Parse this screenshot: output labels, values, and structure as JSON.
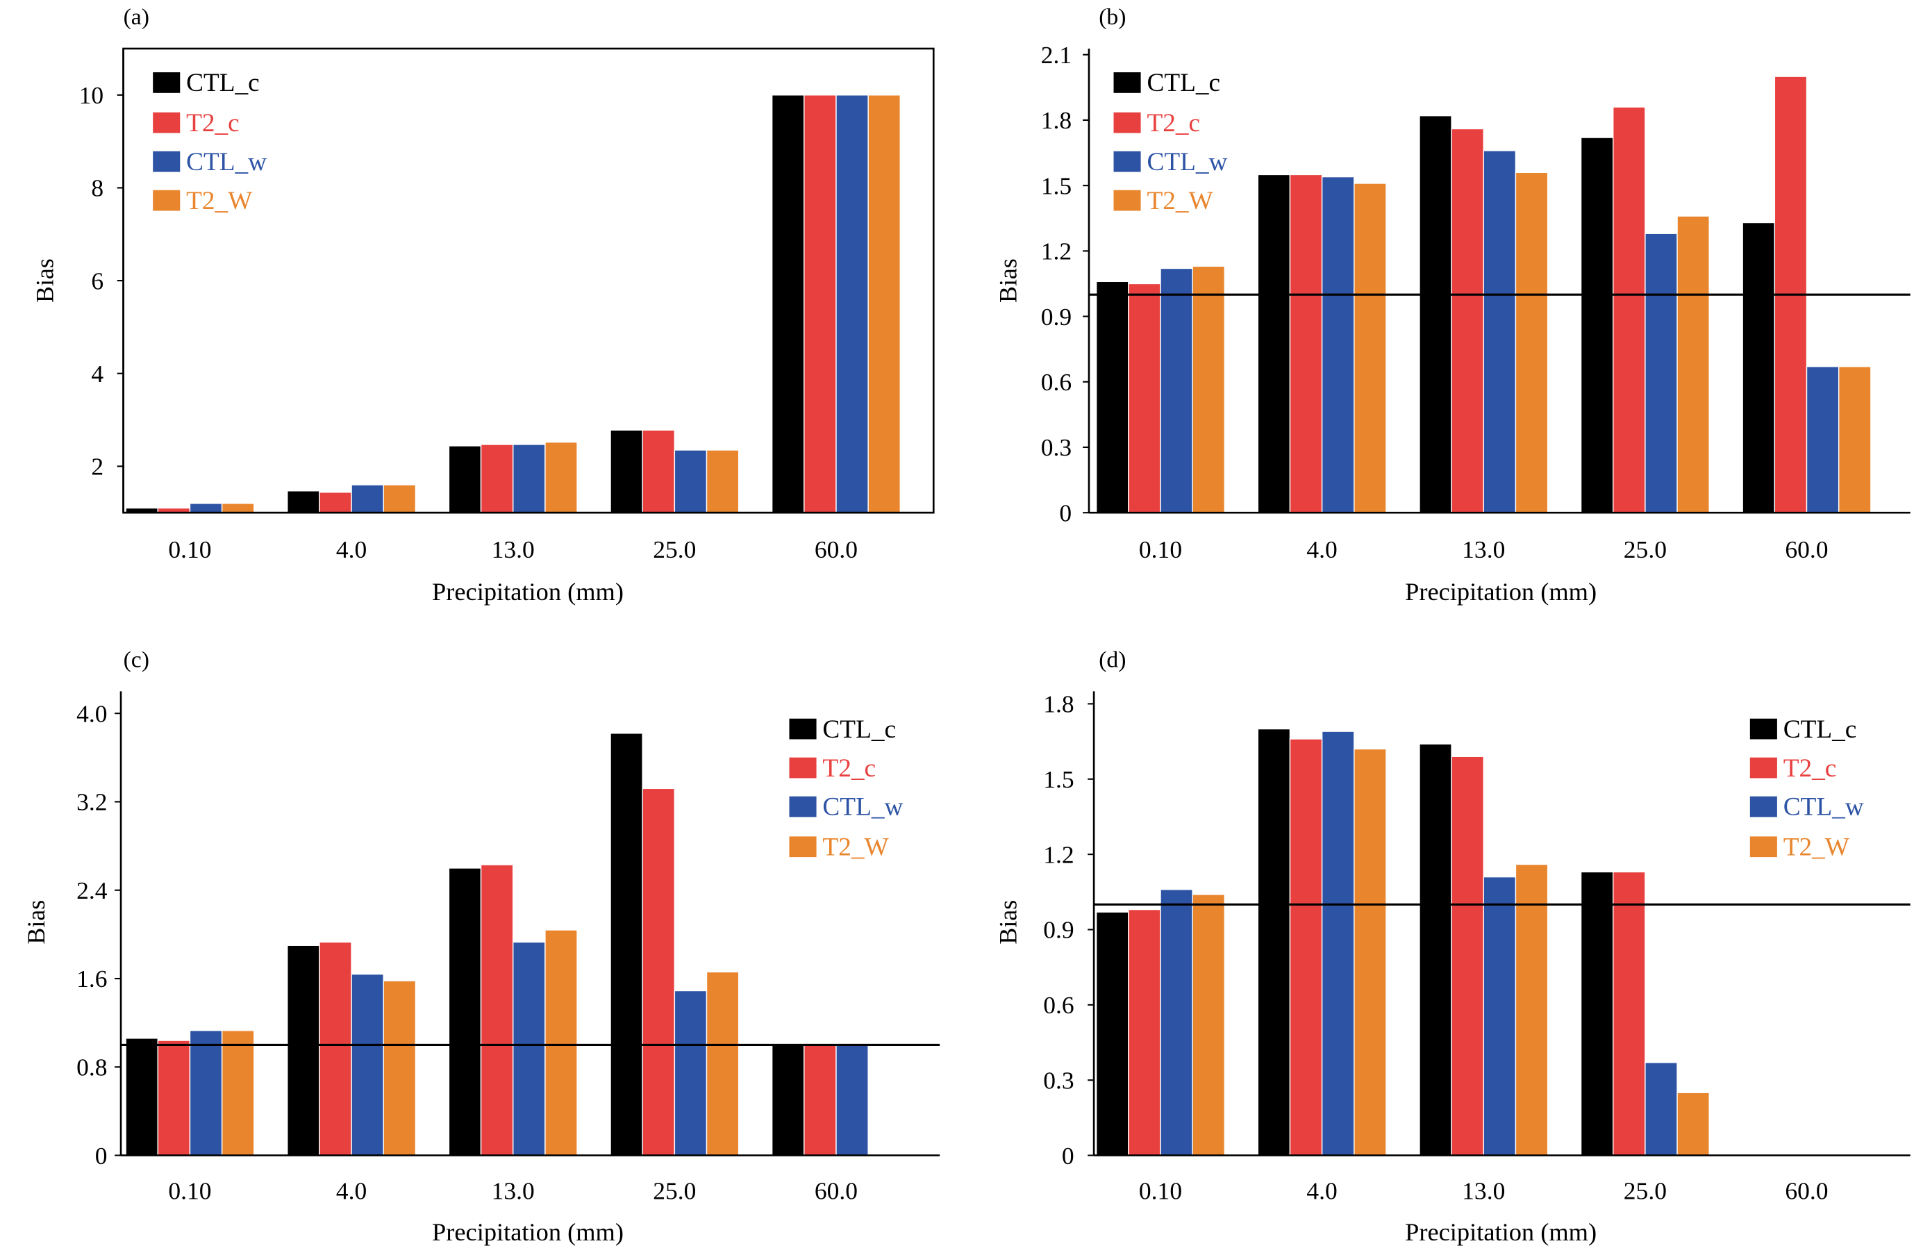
{
  "chart_data": [
    {
      "panel_label": "(a)",
      "type": "bar",
      "categories": [
        "0.10",
        "4.0",
        "13.0",
        "25.0",
        "60.0"
      ],
      "series": [
        {
          "name": "CTL_c",
          "color": "#000000",
          "values": [
            1.1,
            1.47,
            2.44,
            2.78,
            10.0
          ]
        },
        {
          "name": "T2_c",
          "color": "#e8403f",
          "values": [
            1.1,
            1.44,
            2.47,
            2.78,
            10.0
          ]
        },
        {
          "name": "CTL_w",
          "color": "#2d53a5",
          "values": [
            1.2,
            1.6,
            2.47,
            2.35,
            10.0
          ]
        },
        {
          "name": "T2_W",
          "color": "#e9852d",
          "values": [
            1.2,
            1.6,
            2.52,
            2.35,
            10.0
          ]
        }
      ],
      "xlabel": "Precipitation (mm)",
      "ylabel": "Bias",
      "ylim": [
        1,
        11
      ],
      "yticks": [
        "2",
        "4",
        "6",
        "8",
        "10"
      ],
      "legend": "top-left",
      "grid": false
    },
    {
      "panel_label": "(b)",
      "type": "bar",
      "categories": [
        "0.10",
        "4.0",
        "13.0",
        "25.0",
        "60.0"
      ],
      "series": [
        {
          "name": "CTL_c",
          "color": "#000000",
          "values": [
            1.06,
            1.55,
            1.82,
            1.72,
            1.33
          ]
        },
        {
          "name": "T2_c",
          "color": "#e8403f",
          "values": [
            1.05,
            1.55,
            1.76,
            1.86,
            2.0
          ]
        },
        {
          "name": "CTL_w",
          "color": "#2d53a5",
          "values": [
            1.12,
            1.54,
            1.66,
            1.28,
            0.67
          ]
        },
        {
          "name": "T2_W",
          "color": "#e9852d",
          "values": [
            1.13,
            1.51,
            1.56,
            1.36,
            0.67
          ]
        }
      ],
      "xlabel": "Precipitation (mm)",
      "ylabel": "Bias",
      "ylim": [
        0,
        2.1
      ],
      "yticks": [
        "0",
        "0.3",
        "0.6",
        "0.9",
        "1.2",
        "1.5",
        "1.8",
        "2.1"
      ],
      "reference_line": 1.0,
      "legend": "top-left",
      "grid": false
    },
    {
      "panel_label": "(c)",
      "type": "bar",
      "categories": [
        "0.10",
        "4.0",
        "13.0",
        "25.0",
        "60.0"
      ],
      "series": [
        {
          "name": "CTL_c",
          "color": "#000000",
          "values": [
            1.06,
            1.9,
            2.6,
            3.82,
            1.0
          ]
        },
        {
          "name": "T2_c",
          "color": "#e8403f",
          "values": [
            1.04,
            1.93,
            2.63,
            3.32,
            1.0
          ]
        },
        {
          "name": "CTL_w",
          "color": "#2d53a5",
          "values": [
            1.13,
            1.64,
            1.93,
            1.49,
            1.0
          ]
        },
        {
          "name": "T2_W",
          "color": "#e9852d",
          "values": [
            1.13,
            1.58,
            2.04,
            1.66,
            0.0
          ]
        }
      ],
      "xlabel": "Precipitation (mm)",
      "ylabel": "Bias",
      "ylim": [
        0,
        4.2
      ],
      "yticks": [
        "0",
        "0.8",
        "1.6",
        "2.4",
        "3.2",
        "4.0"
      ],
      "reference_line": 1.0,
      "legend": "top-right",
      "grid": false
    },
    {
      "panel_label": "(d)",
      "type": "bar",
      "categories": [
        "0.10",
        "4.0",
        "13.0",
        "25.0",
        "60.0"
      ],
      "series": [
        {
          "name": "CTL_c",
          "color": "#000000",
          "values": [
            0.97,
            1.7,
            1.64,
            1.13,
            0.0
          ]
        },
        {
          "name": "T2_c",
          "color": "#e8403f",
          "values": [
            0.98,
            1.66,
            1.59,
            1.13,
            0.0
          ]
        },
        {
          "name": "CTL_w",
          "color": "#2d53a5",
          "values": [
            1.06,
            1.69,
            1.11,
            0.37,
            0.0
          ]
        },
        {
          "name": "T2_W",
          "color": "#e9852d",
          "values": [
            1.04,
            1.62,
            1.16,
            0.25,
            0.0
          ]
        }
      ],
      "xlabel": "Precipitation (mm)",
      "ylabel": "Bias",
      "ylim": [
        0,
        1.85
      ],
      "yticks": [
        "0",
        "0.3",
        "0.6",
        "0.9",
        "1.2",
        "1.5",
        "1.8"
      ],
      "reference_line": 1.0,
      "legend": "top-right",
      "grid": false
    }
  ]
}
